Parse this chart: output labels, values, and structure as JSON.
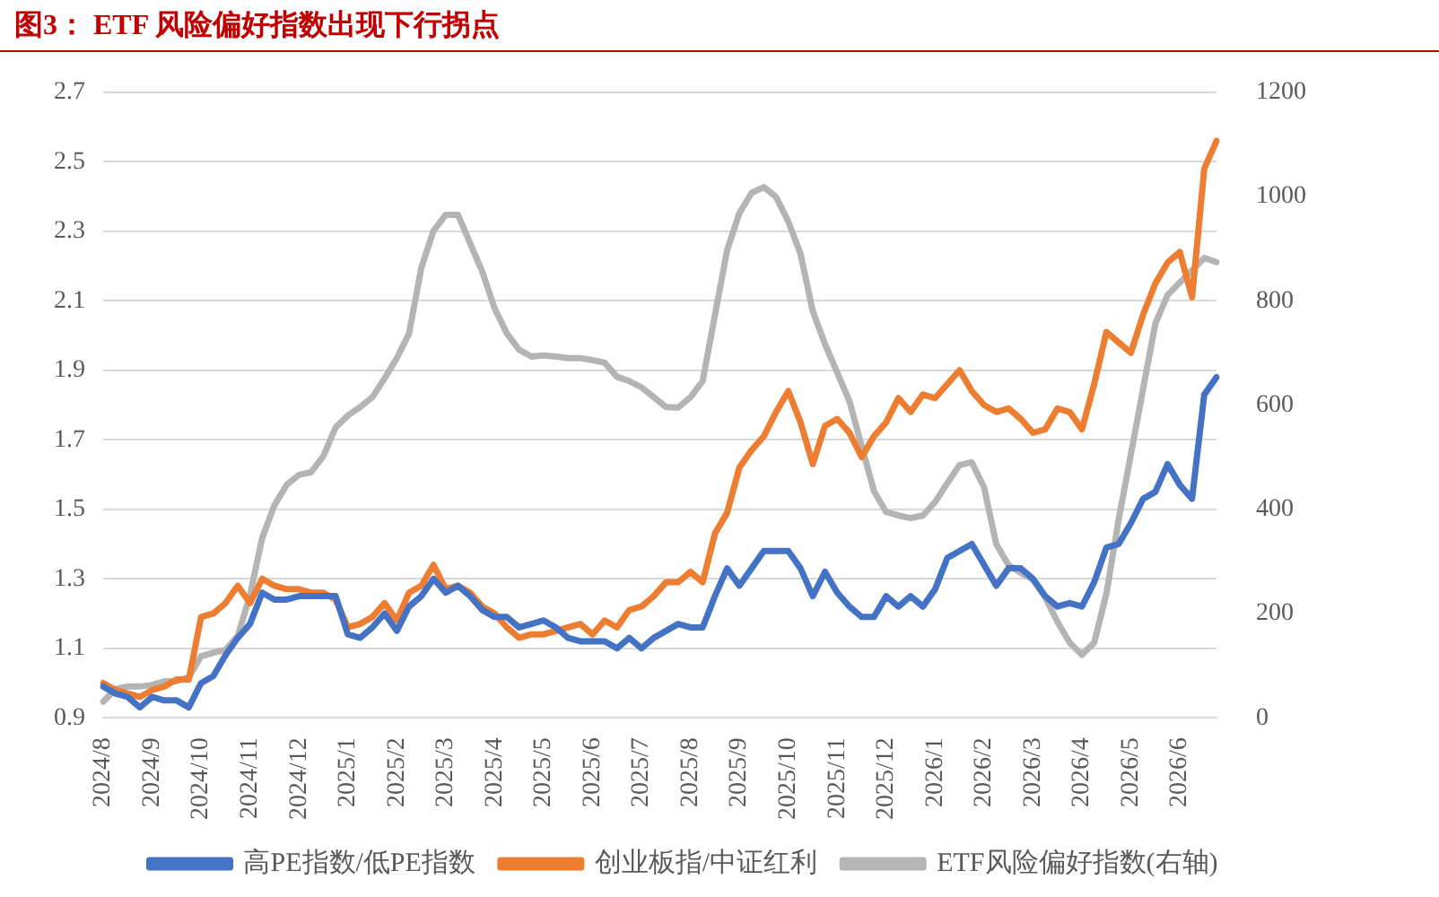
{
  "chart_data": {
    "type": "line",
    "title": "图3：  ETF 风险偏好指数出现下行拐点",
    "categories": [
      "2024/8",
      null,
      null,
      null,
      "2024/9",
      null,
      null,
      null,
      "2024/10",
      null,
      null,
      null,
      "2024/11",
      null,
      null,
      null,
      "2024/12",
      null,
      null,
      null,
      "2025/1",
      null,
      null,
      null,
      "2025/2",
      null,
      null,
      null,
      "2025/3",
      null,
      null,
      null,
      "2025/4",
      null,
      null,
      null,
      "2025/5",
      null,
      null,
      null,
      "2025/6",
      null,
      null,
      null,
      "2025/7",
      null,
      null,
      null,
      "2025/8",
      null,
      null,
      null,
      "2025/9",
      null,
      null,
      null,
      "2025/10",
      null,
      null,
      null,
      "2025/11",
      null,
      null,
      null,
      "2025/12",
      null,
      null,
      null,
      "2026/1",
      null,
      null,
      null,
      "2026/2",
      null,
      null,
      null,
      "2026/3",
      null,
      null,
      null,
      "2026/4",
      null,
      null,
      null,
      "2026/5",
      null,
      null,
      null,
      "2026/6",
      null,
      null,
      null
    ],
    "series": [
      {
        "name": "高PE指数/低PE指数",
        "color": "#4472c4",
        "values": [
          0.99,
          0.97,
          0.96,
          0.93,
          0.96,
          0.95,
          0.95,
          0.93,
          1.0,
          1.02,
          1.08,
          1.13,
          1.17,
          1.26,
          1.24,
          1.24,
          1.25,
          1.25,
          1.25,
          1.25,
          1.14,
          1.13,
          1.16,
          1.2,
          1.15,
          1.22,
          1.25,
          1.3,
          1.26,
          1.28,
          1.25,
          1.21,
          1.19,
          1.19,
          1.16,
          1.17,
          1.18,
          1.16,
          1.13,
          1.12,
          1.12,
          1.12,
          1.1,
          1.13,
          1.1,
          1.13,
          1.15,
          1.17,
          1.16,
          1.16,
          1.25,
          1.33,
          1.28,
          1.33,
          1.38,
          1.38,
          1.38,
          1.33,
          1.25,
          1.32,
          1.26,
          1.22,
          1.19,
          1.19,
          1.25,
          1.22,
          1.25,
          1.22,
          1.27,
          1.36,
          1.38,
          1.4,
          1.34,
          1.28,
          1.33,
          1.33,
          1.3,
          1.25,
          1.22,
          1.23,
          1.22,
          1.29,
          1.39,
          1.4,
          1.46,
          1.53,
          1.55,
          1.63,
          1.57,
          1.53,
          1.83,
          1.88
        ]
      },
      {
        "name": "创业板指/中证红利",
        "color": "#ed7d31",
        "values": [
          1.0,
          0.98,
          0.97,
          0.96,
          0.98,
          0.99,
          1.01,
          1.01,
          1.19,
          1.2,
          1.23,
          1.28,
          1.23,
          1.3,
          1.28,
          1.27,
          1.27,
          1.26,
          1.26,
          1.24,
          1.16,
          1.17,
          1.19,
          1.23,
          1.18,
          1.26,
          1.28,
          1.34,
          1.27,
          1.28,
          1.26,
          1.22,
          1.2,
          1.16,
          1.13,
          1.14,
          1.14,
          1.15,
          1.16,
          1.17,
          1.14,
          1.18,
          1.16,
          1.21,
          1.22,
          1.25,
          1.29,
          1.29,
          1.32,
          1.29,
          1.43,
          1.49,
          1.62,
          1.67,
          1.71,
          1.78,
          1.84,
          1.75,
          1.63,
          1.74,
          1.76,
          1.72,
          1.65,
          1.71,
          1.75,
          1.82,
          1.78,
          1.83,
          1.82,
          1.86,
          1.9,
          1.84,
          1.8,
          1.78,
          1.79,
          1.76,
          1.72,
          1.73,
          1.79,
          1.78,
          1.73,
          1.86,
          2.01,
          1.98,
          1.95,
          2.06,
          2.15,
          2.21,
          2.24,
          2.11,
          2.48,
          2.56
        ]
      },
      {
        "name": "ETF风险偏好指数(右轴)",
        "color": "#b4b4b4",
        "axis": "y2",
        "values": [
          31,
          55,
          60,
          60,
          63,
          70,
          70,
          78,
          118,
          125,
          130,
          157,
          235,
          345,
          408,
          447,
          466,
          471,
          502,
          557,
          580,
          596,
          615,
          651,
          690,
          737,
          863,
          934,
          965,
          965,
          910,
          855,
          785,
          737,
          706,
          693,
          695,
          693,
          690,
          690,
          686,
          681,
          654,
          646,
          634,
          615,
          596,
          595,
          615,
          646,
          772,
          897,
          968,
          1007,
          1018,
          999,
          952,
          890,
          780,
          717,
          662,
          607,
          521,
          435,
          395,
          388,
          383,
          388,
          414,
          450,
          485,
          490,
          442,
          333,
          293,
          278,
          265,
          231,
          184,
          144,
          121,
          144,
          238,
          380,
          505,
          631,
          756,
          811,
          835,
          858,
          882,
          874
        ]
      }
    ],
    "ylim": [
      0.9,
      2.7
    ],
    "yticks": [
      0.9,
      1.1,
      1.3,
      1.5,
      1.7,
      1.9,
      2.1,
      2.3,
      2.5,
      2.7
    ],
    "y2lim": [
      0,
      1200
    ],
    "y2ticks": [
      0,
      200,
      400,
      600,
      800,
      1000,
      1200
    ],
    "grid": "y",
    "legend": "bottom"
  }
}
